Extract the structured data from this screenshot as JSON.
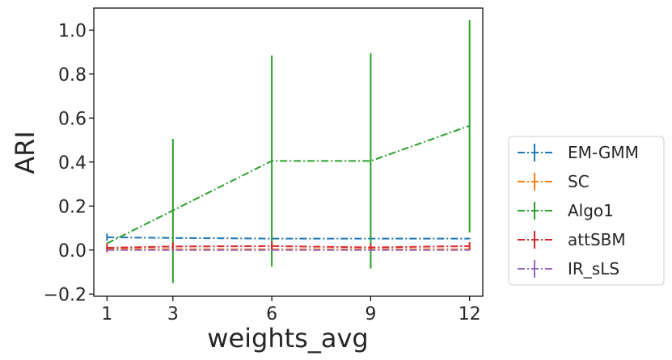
{
  "chart_data": {
    "type": "line",
    "title": "",
    "xlabel": "weights_avg",
    "ylabel": "ARI",
    "x": [
      1,
      3,
      6,
      9,
      12
    ],
    "xticks": [
      "1",
      "3",
      "6",
      "9",
      "12"
    ],
    "xlim": [
      0.6,
      12.4
    ],
    "ylim": [
      -0.21,
      1.1
    ],
    "yticks": [
      -0.2,
      0.0,
      0.2,
      0.4,
      0.6,
      0.8,
      1.0
    ],
    "ytick_labels": [
      "−0.2",
      "0.0",
      "0.2",
      "0.4",
      "0.6",
      "0.8",
      "1.0"
    ],
    "grid": false,
    "legend_position": "outside-right",
    "series": [
      {
        "name": "EM-GMM",
        "color": "#1f77b4",
        "values": [
          0.058,
          0.055,
          0.052,
          0.052,
          0.052
        ],
        "err_low": [
          0.042,
          0.053,
          0.05,
          0.05,
          0.05
        ],
        "err_high": [
          0.075,
          0.057,
          0.054,
          0.054,
          0.054
        ]
      },
      {
        "name": "SC",
        "color": "#ff7f0e",
        "values": [
          0.005,
          0.004,
          0.004,
          0.004,
          0.004
        ],
        "err_low": [
          0.0,
          0.0,
          0.0,
          0.0,
          0.0
        ],
        "err_high": [
          0.01,
          0.008,
          0.008,
          0.008,
          0.008
        ]
      },
      {
        "name": "Algo1",
        "color": "#2ca02c",
        "values": [
          0.03,
          0.18,
          0.405,
          0.405,
          0.565
        ],
        "err_low": [
          0.03,
          -0.15,
          -0.075,
          -0.085,
          0.08
        ],
        "err_high": [
          0.03,
          0.505,
          0.885,
          0.895,
          1.045
        ]
      },
      {
        "name": "attSBM",
        "color": "#d62728",
        "values": [
          0.01,
          0.016,
          0.018,
          0.012,
          0.018
        ],
        "err_low": [
          -0.01,
          -0.004,
          -0.002,
          -0.005,
          -0.002
        ],
        "err_high": [
          0.03,
          0.036,
          0.038,
          0.03,
          0.036
        ]
      },
      {
        "name": "IR_sLS",
        "color": "#9467bd",
        "values": [
          0.0,
          0.0,
          0.0,
          0.0,
          0.0
        ],
        "err_low": [
          0.0,
          0.0,
          0.0,
          0.0,
          0.0
        ],
        "err_high": [
          0.0,
          0.0,
          0.0,
          0.0,
          0.0
        ]
      }
    ]
  }
}
